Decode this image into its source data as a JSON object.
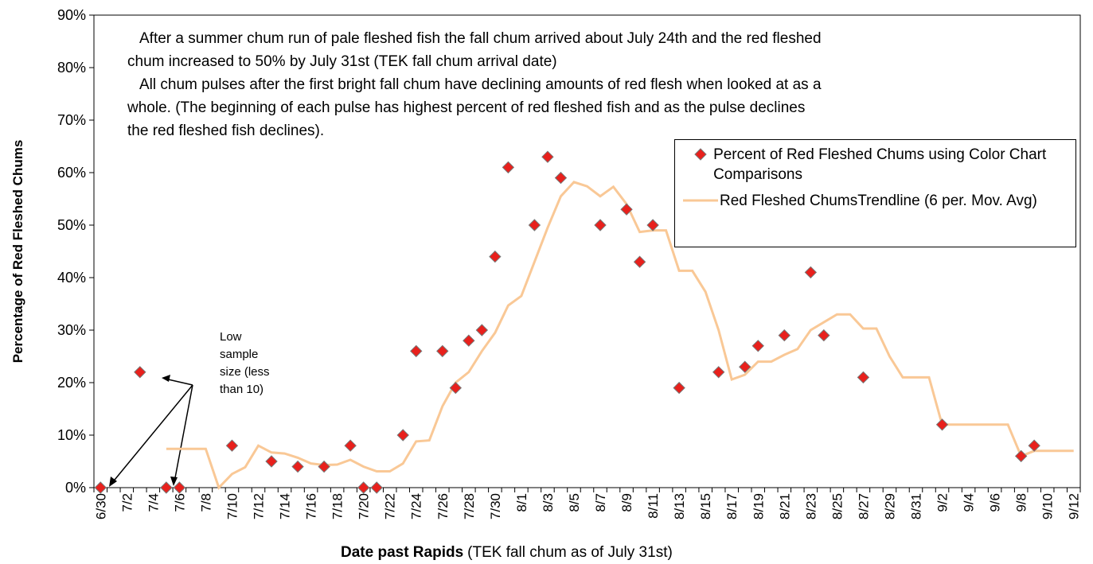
{
  "chart_data": {
    "type": "scatter-line",
    "ylabel": "Percentage of Red Fleshed Chums",
    "xlabel": "Date past Rapids",
    "xlabel_note": "(TEK fall chum as of July 31st)",
    "annotation": [
      "After a summer chum run of pale fleshed fish the fall chum arrived about July 24th and the red fleshed",
      "chum increased to 50% by July 31st (TEK fall chum arrival date)",
      "All chum pulses after the first bright fall chum have declining amounts of red flesh when looked at as a",
      "whole. (The beginning of each pulse has highest percent of red fleshed fish and as the pulse declines",
      "the red fleshed fish declines)."
    ],
    "note": [
      "Low",
      "sample",
      "size (less",
      "than 10)"
    ],
    "categories": [
      "6/30",
      null,
      "7/2",
      null,
      "7/4",
      null,
      "7/6",
      null,
      "7/8",
      null,
      "7/10",
      null,
      "7/12",
      null,
      "7/14",
      null,
      "7/16",
      null,
      "7/18",
      null,
      "7/20",
      null,
      "7/22",
      null,
      "7/24",
      null,
      "7/26",
      null,
      "7/28",
      null,
      "7/30",
      null,
      "8/1",
      null,
      "8/3",
      null,
      "8/5",
      null,
      "8/7",
      null,
      "8/9",
      null,
      "8/11",
      null,
      "8/13",
      null,
      "8/15",
      null,
      "8/17",
      null,
      "8/19",
      null,
      "8/21",
      null,
      "8/23",
      null,
      "8/25",
      null,
      "8/27",
      null,
      "8/29",
      null,
      "8/31",
      null,
      "9/2",
      null,
      "9/4",
      null,
      "9/6",
      null,
      "9/8",
      null,
      "9/10",
      null,
      "9/12"
    ],
    "series": [
      {
        "name": "Percent of Red Fleshed Chums using Color Chart Comparisons",
        "color": "#e8201c",
        "mark": "diamond",
        "values": [
          0,
          null,
          null,
          22,
          null,
          0,
          0,
          null,
          null,
          null,
          8,
          null,
          null,
          5,
          null,
          4,
          null,
          4,
          null,
          8,
          0,
          0,
          null,
          10,
          26,
          null,
          26,
          19,
          28,
          30,
          44,
          61,
          null,
          50,
          63,
          59,
          null,
          null,
          50,
          null,
          53,
          43,
          50,
          null,
          19,
          null,
          null,
          22,
          null,
          23,
          27,
          null,
          29,
          null,
          41,
          29,
          null,
          null,
          21,
          null,
          null,
          null,
          null,
          null,
          12,
          null,
          null,
          null,
          null,
          null,
          6,
          8,
          null,
          null,
          null
        ]
      },
      {
        "name": "Red Fleshed ChumsTrendline (6 per. Mov. Avg)",
        "color": "#f9c896",
        "mark": "line",
        "values": [
          null,
          null,
          null,
          null,
          null,
          7.4,
          7.4,
          7.4,
          7.4,
          0,
          2.6,
          3.9,
          8,
          6.7,
          6.5,
          5.7,
          4.6,
          4.3,
          4.4,
          5.3,
          4,
          3.1,
          3.1,
          4.6,
          8.8,
          9,
          15.5,
          20,
          22,
          26,
          29.5,
          34.7,
          36.5,
          43,
          49.5,
          55.5,
          58.2,
          57.4,
          55.5,
          57.3,
          54,
          48.7,
          49,
          49,
          41.3,
          41.3,
          37.3,
          30,
          20.6,
          21.5,
          24,
          24,
          25.3,
          26.4,
          30,
          31.5,
          33,
          33,
          30.3,
          30.3,
          25,
          21,
          21,
          21,
          12,
          12,
          12,
          12,
          12,
          12,
          6,
          7,
          7,
          7,
          7
        ]
      }
    ],
    "ylim": [
      0,
      90
    ],
    "yticks": [
      {
        "value": 0,
        "label": "0%"
      },
      {
        "value": 10,
        "label": "10%"
      },
      {
        "value": 20,
        "label": "20%"
      },
      {
        "value": 30,
        "label": "30%"
      },
      {
        "value": 40,
        "label": "40%"
      },
      {
        "value": 50,
        "label": "50%"
      },
      {
        "value": 60,
        "label": "60%"
      },
      {
        "value": 70,
        "label": "70%"
      },
      {
        "value": 80,
        "label": "80%"
      },
      {
        "value": 90,
        "label": "90%"
      }
    ],
    "grid": false
  }
}
